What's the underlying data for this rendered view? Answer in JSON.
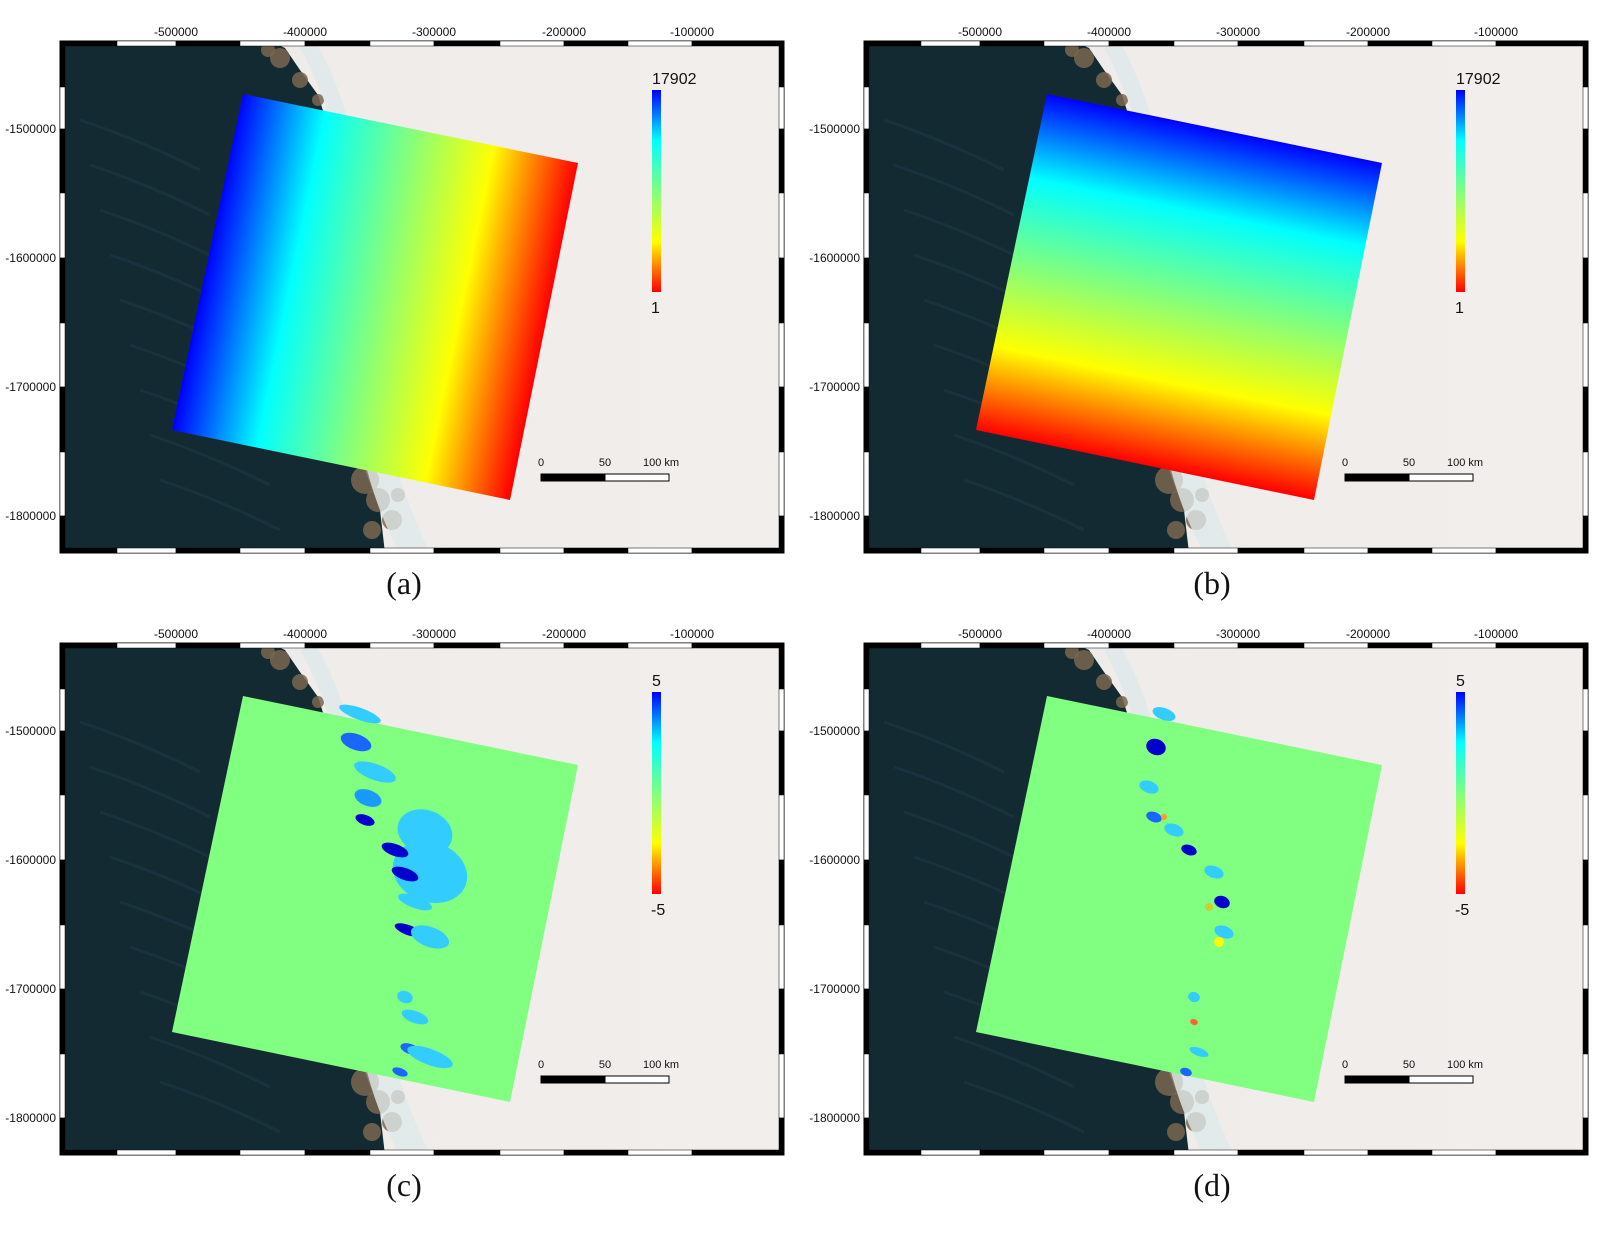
{
  "panels": [
    {
      "id": "a",
      "caption": "(a)",
      "layer": "range-gradient",
      "colorbar": {
        "max_label": "17902",
        "min_label": "1"
      }
    },
    {
      "id": "b",
      "caption": "(b)",
      "layer": "azimuth-gradient",
      "colorbar": {
        "max_label": "17902",
        "min_label": "1"
      }
    },
    {
      "id": "c",
      "caption": "(c)",
      "layer": "offset-field",
      "colorbar": {
        "max_label": "5",
        "min_label": "-5"
      }
    },
    {
      "id": "d",
      "caption": "(d)",
      "layer": "offset-field",
      "colorbar": {
        "max_label": "5",
        "min_label": "-5"
      }
    }
  ],
  "x_ticks": [
    "-500000",
    "-400000",
    "-300000",
    "-200000",
    "-100000"
  ],
  "y_ticks": [
    "-1500000",
    "-1600000",
    "-1700000",
    "-1800000"
  ],
  "scale_bar": {
    "labels": [
      "0",
      "50",
      "100 km"
    ]
  },
  "colors": {
    "ocean": "#142a33",
    "ice": "#efecea",
    "rock": "#7a6650",
    "background_green": "#80ff80",
    "colormap": [
      "#0000ff",
      "#00ffff",
      "#80ff80",
      "#ffff00",
      "#ff0000"
    ]
  }
}
